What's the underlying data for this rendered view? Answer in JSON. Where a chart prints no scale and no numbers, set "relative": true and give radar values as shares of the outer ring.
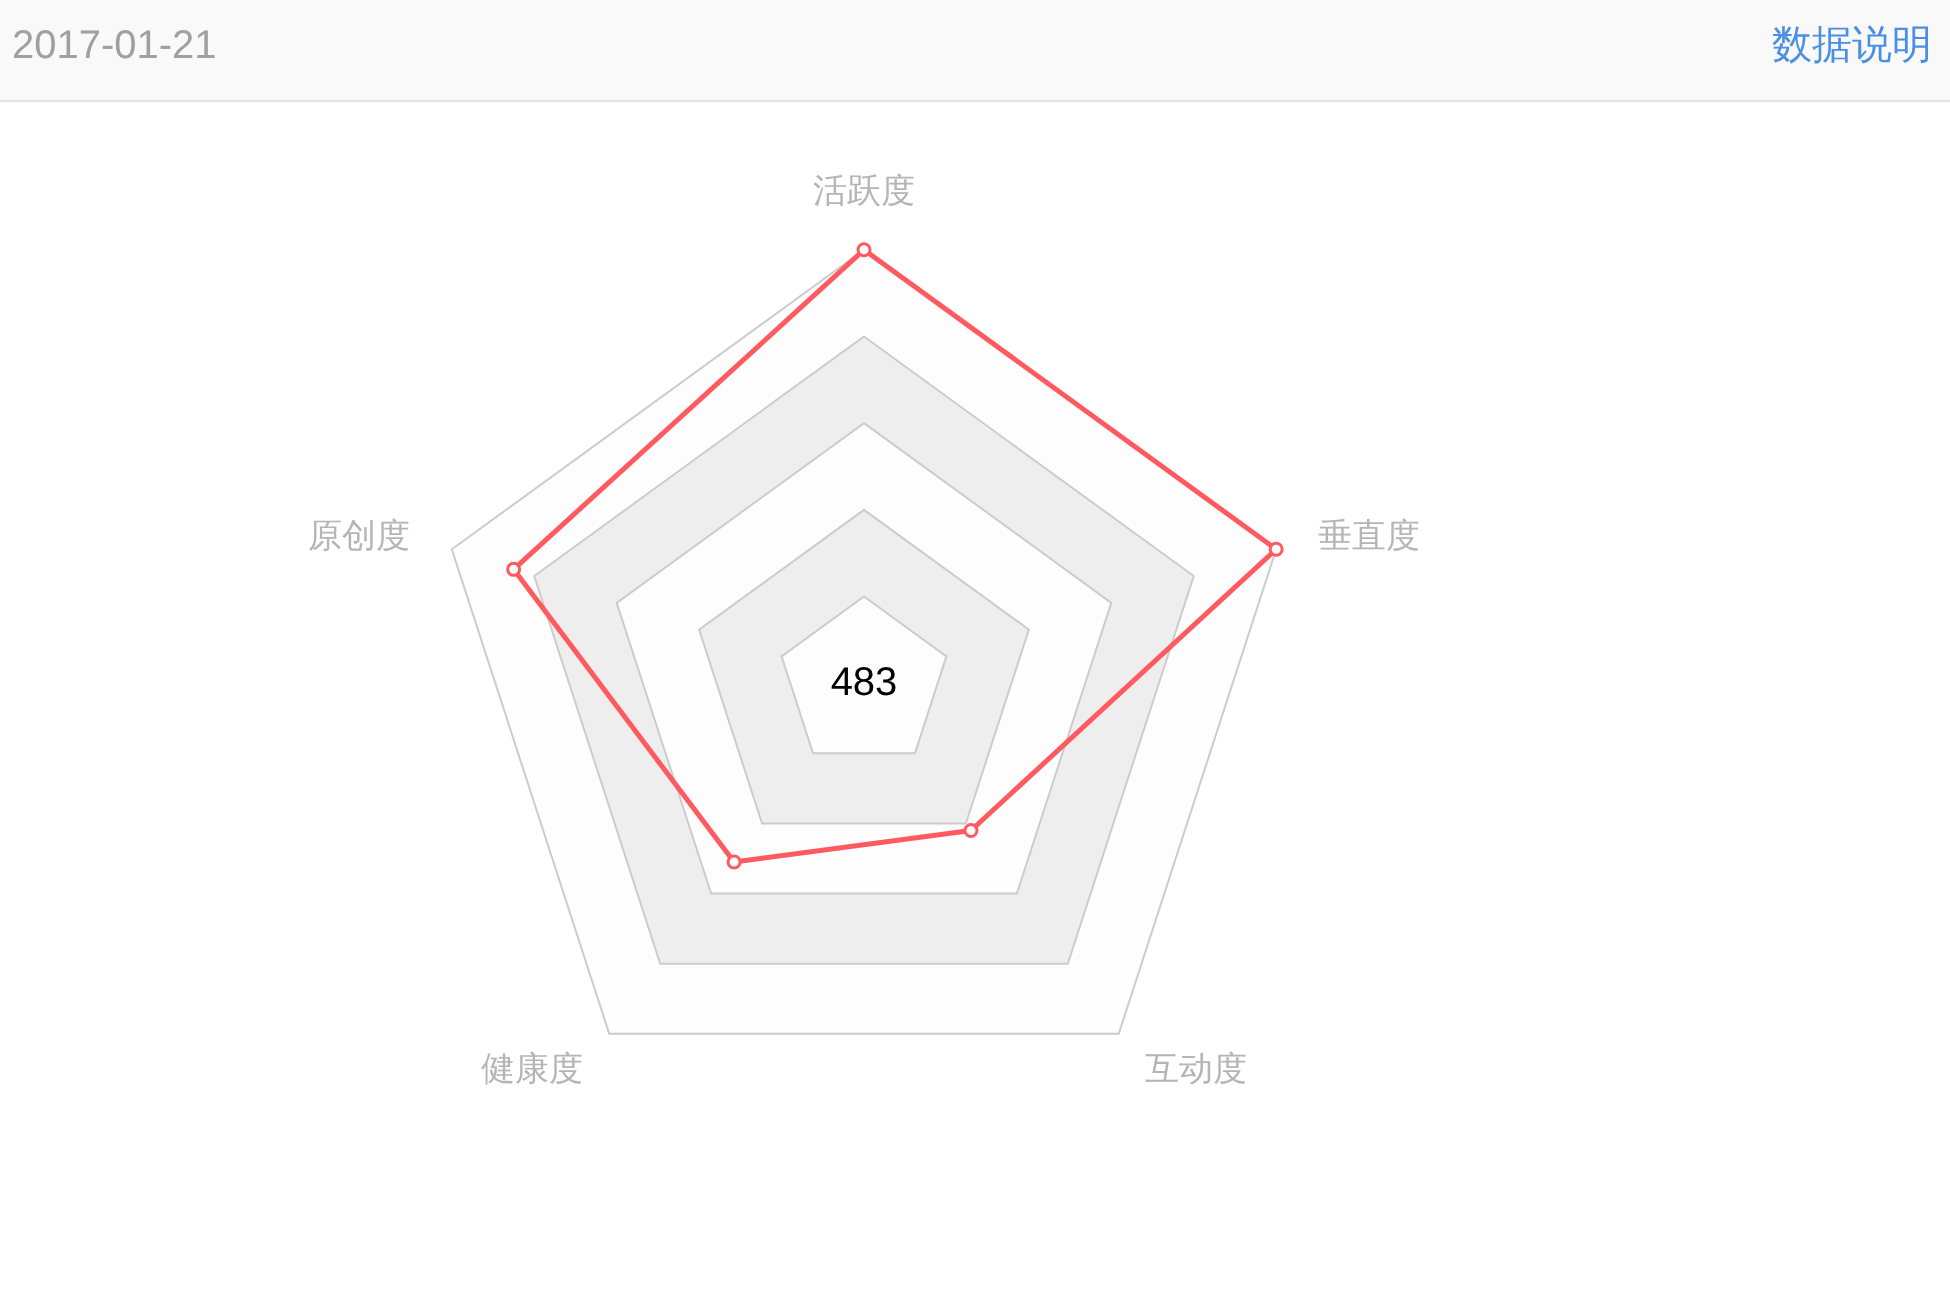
{
  "chart_data": {
    "type": "radar",
    "title": "2017-01-21",
    "annotations": [
      "数据说明",
      "483"
    ],
    "categories": [
      "活跃度",
      "垂直度",
      "互动度",
      "健康度",
      "原创度"
    ],
    "relative": true,
    "series": [
      {
        "color": "#ff5a5f",
        "values": [
          1,
          1,
          0.42,
          0.51,
          0.85
        ]
      }
    ],
    "grid": true,
    "marker": "circle",
    "line_style": "solid"
  }
}
